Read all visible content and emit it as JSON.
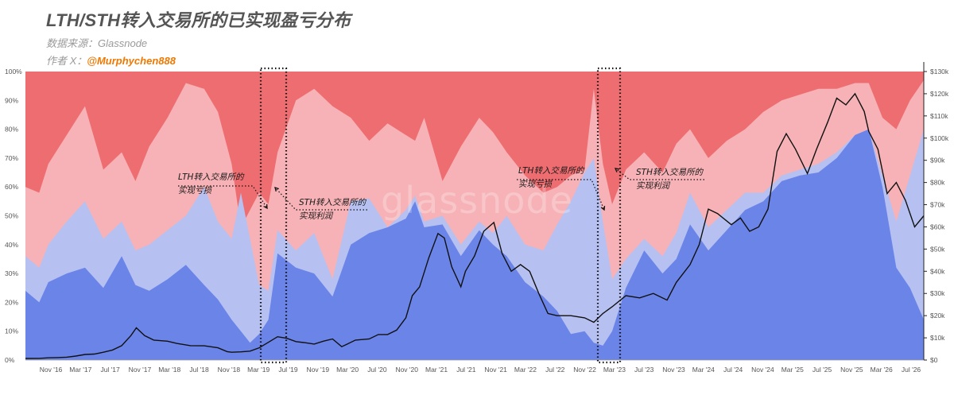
{
  "header": {
    "title": "LTH/STH转入交易所的已实现盈亏分布",
    "source": "数据来源：Glassnode",
    "author_prefix": "作者 X：",
    "author_handle": "@Murphychen888"
  },
  "watermark": "glassnode",
  "colors": {
    "lth_loss": "#6b84e8",
    "lth_profit": "#b6c1f2",
    "sth_loss": "#f6b2b6",
    "sth_profit": "#ee6d70",
    "price": "#111111"
  },
  "chart_data": {
    "type": "area",
    "stacked_percent": true,
    "x_ticks": [
      "Nov '16",
      "Mar '17",
      "Jul '17",
      "Nov '17",
      "Mar '18",
      "Jul '18",
      "Nov '18",
      "Mar '19",
      "Jul '19",
      "Nov '19",
      "Mar '20",
      "Jul '20",
      "Nov '20",
      "Mar '21",
      "Jul '21",
      "Nov '21",
      "Mar '22",
      "Jul '22",
      "Nov '22",
      "Mar '23",
      "Jul '23",
      "Nov '23",
      "Mar '24",
      "Jul '24",
      "Nov '24",
      "Mar '25",
      "Jul '25",
      "Nov '25",
      "Mar '26",
      "Jul '26"
    ],
    "y_left_ticks": [
      "0%",
      "10%",
      "20%",
      "30%",
      "40%",
      "50%",
      "60%",
      "70%",
      "80%",
      "90%",
      "100%"
    ],
    "y_right_ticks": [
      "$0",
      "$10k",
      "$20k",
      "$30k",
      "$40k",
      "$50k",
      "$60k",
      "$70k",
      "$80k",
      "$90k",
      "$100k",
      "$110k",
      "$120k",
      "$130k"
    ],
    "y_left_range": [
      0,
      100
    ],
    "y_right_range": [
      0,
      130000
    ],
    "x_range": [
      2016.75,
      2026.55
    ],
    "stack_boundaries": {
      "x": [
        2016.75,
        2016.9,
        2017.0,
        2017.2,
        2017.4,
        2017.6,
        2017.8,
        2017.95,
        2018.1,
        2018.3,
        2018.5,
        2018.7,
        2018.85,
        2019.0,
        2019.1,
        2019.2,
        2019.3,
        2019.4,
        2019.5,
        2019.7,
        2019.9,
        2020.1,
        2020.3,
        2020.5,
        2020.7,
        2020.9,
        2021.0,
        2021.1,
        2021.3,
        2021.5,
        2021.7,
        2021.85,
        2022.0,
        2022.2,
        2022.4,
        2022.55,
        2022.7,
        2022.85,
        2022.95,
        2023.05,
        2023.15,
        2023.3,
        2023.5,
        2023.7,
        2023.85,
        2024.0,
        2024.2,
        2024.4,
        2024.6,
        2024.8,
        2025.0,
        2025.2,
        2025.4,
        2025.6,
        2025.8,
        2025.95,
        2026.1,
        2026.25,
        2026.4,
        2026.55
      ],
      "lth_loss_top": [
        24,
        20,
        27,
        30,
        32,
        25,
        36,
        26,
        24,
        28,
        33,
        26,
        21,
        14,
        10,
        6,
        9,
        14,
        37,
        32,
        30,
        22,
        40,
        44,
        46,
        49,
        55,
        46,
        47,
        36,
        45,
        40,
        36,
        27,
        22,
        17,
        9,
        10,
        6,
        5,
        10,
        25,
        38,
        30,
        35,
        47,
        38,
        45,
        52,
        55,
        62,
        64,
        65,
        70,
        78,
        80,
        60,
        32,
        25,
        14
      ],
      "lth_profit_top": [
        36,
        32,
        40,
        48,
        55,
        42,
        48,
        38,
        40,
        45,
        50,
        60,
        48,
        42,
        58,
        42,
        26,
        24,
        45,
        38,
        44,
        28,
        55,
        56,
        46,
        52,
        57,
        48,
        50,
        40,
        48,
        44,
        50,
        40,
        38,
        47,
        55,
        65,
        70,
        48,
        28,
        35,
        42,
        36,
        44,
        58,
        46,
        52,
        58,
        58,
        64,
        66,
        68,
        72,
        78,
        80,
        64,
        48,
        64,
        80
      ],
      "sth_loss_top": [
        60,
        58,
        68,
        78,
        88,
        66,
        72,
        62,
        74,
        84,
        96,
        94,
        86,
        68,
        46,
        52,
        58,
        54,
        72,
        90,
        94,
        88,
        84,
        76,
        82,
        78,
        76,
        84,
        62,
        74,
        84,
        79,
        72,
        64,
        58,
        60,
        64,
        66,
        94,
        68,
        54,
        66,
        72,
        65,
        75,
        80,
        70,
        76,
        80,
        86,
        90,
        92,
        94,
        94,
        96,
        96,
        84,
        80,
        90,
        97
      ]
    },
    "series": [
      {
        "name": "LTH转入交易所的实现亏损",
        "axis": "left"
      },
      {
        "name": "STH转入交易所的实现利润",
        "axis": "right"
      }
    ],
    "price": {
      "x": [
        2016.75,
        2016.9,
        2017.0,
        2017.1,
        2017.2,
        2017.3,
        2017.4,
        2017.5,
        2017.6,
        2017.7,
        2017.8,
        2017.9,
        2017.96,
        2018.05,
        2018.15,
        2018.3,
        2018.4,
        2018.55,
        2018.7,
        2018.85,
        2018.95,
        2019.0,
        2019.1,
        2019.2,
        2019.3,
        2019.4,
        2019.5,
        2019.6,
        2019.7,
        2019.8,
        2019.9,
        2020.0,
        2020.1,
        2020.2,
        2020.25,
        2020.35,
        2020.5,
        2020.6,
        2020.7,
        2020.8,
        2020.9,
        2020.97,
        2021.05,
        2021.15,
        2021.25,
        2021.32,
        2021.4,
        2021.5,
        2021.55,
        2021.65,
        2021.75,
        2021.86,
        2021.95,
        2022.05,
        2022.15,
        2022.25,
        2022.35,
        2022.45,
        2022.55,
        2022.7,
        2022.85,
        2022.95,
        2023.05,
        2023.15,
        2023.3,
        2023.45,
        2023.6,
        2023.75,
        2023.85,
        2024.0,
        2024.1,
        2024.2,
        2024.3,
        2024.45,
        2024.55,
        2024.65,
        2024.75,
        2024.85,
        2024.95,
        2025.05,
        2025.15,
        2025.28,
        2025.38,
        2025.5,
        2025.6,
        2025.7,
        2025.8,
        2025.9,
        2025.95,
        2026.05,
        2026.15,
        2026.25,
        2026.35,
        2026.45,
        2026.55
      ],
      "y": [
        700,
        750,
        1000,
        1100,
        1300,
        1800,
        2500,
        2700,
        3500,
        4500,
        6500,
        11000,
        14500,
        11000,
        9000,
        8500,
        7500,
        6500,
        6400,
        5500,
        3800,
        3500,
        3700,
        4000,
        5500,
        8000,
        10500,
        9800,
        8300,
        7800,
        7200,
        8500,
        9500,
        6000,
        7000,
        9000,
        9500,
        11500,
        11500,
        13500,
        19000,
        29000,
        33000,
        46000,
        57000,
        55000,
        42000,
        33000,
        40000,
        47000,
        58000,
        62000,
        48000,
        40000,
        43000,
        40000,
        30000,
        21000,
        20000,
        20000,
        19000,
        17000,
        21000,
        24000,
        29000,
        28000,
        30000,
        27000,
        35000,
        43000,
        52000,
        68000,
        66000,
        61000,
        64000,
        58000,
        60000,
        68000,
        94000,
        102000,
        95000,
        84000,
        95000,
        107000,
        118000,
        115000,
        120000,
        112000,
        103000,
        95000,
        75000,
        80000,
        72000,
        60000,
        65000
      ]
    },
    "annotations": [
      {
        "text": "LTH转入交易所的",
        "text2": "实现亏损"
      },
      {
        "text": "STH转入交易所的",
        "text2": "实现利润"
      },
      {
        "text": "LTH转入交易所的",
        "text2": "实现亏损"
      },
      {
        "text": "STH转入交易所的",
        "text2": "实现利润"
      }
    ]
  }
}
